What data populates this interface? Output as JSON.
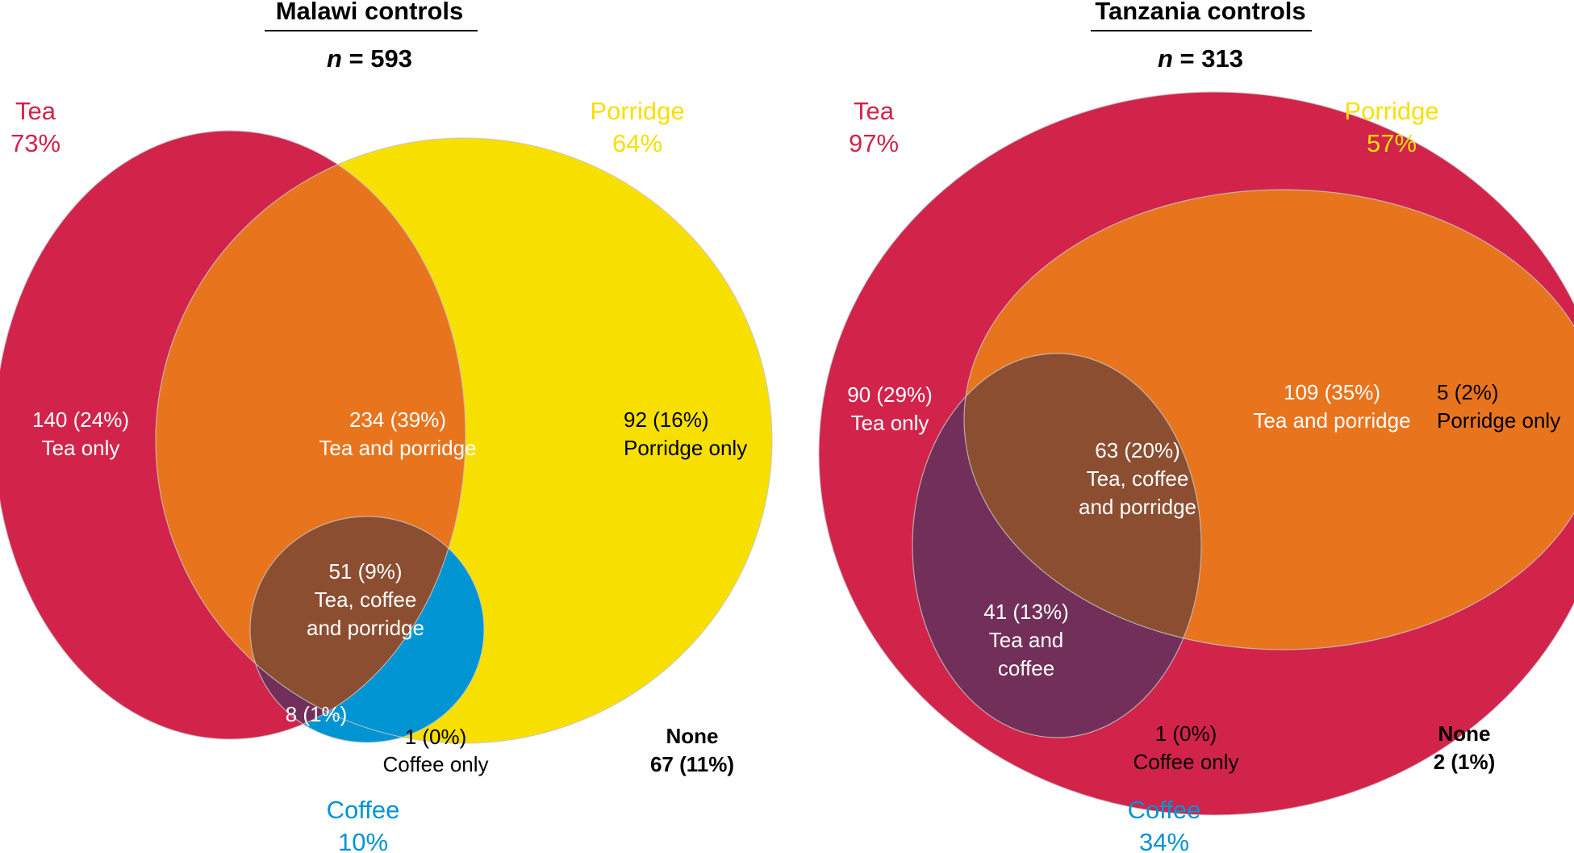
{
  "colors": {
    "tea": "#d2234b",
    "porridge": "#f7df00",
    "coffee": "#0094d2",
    "tea_porridge": "#e8741e",
    "tea_coffee": "#722f59",
    "tea_coffee_porridge": "#8c4e31",
    "label_light": "#ffffff",
    "label_dark": "#000000"
  },
  "panels": [
    {
      "title": "Malawi controls",
      "n_label": "n",
      "n_value": "= 593",
      "sets": {
        "tea": {
          "name": "Tea",
          "percent": "73%"
        },
        "porridge": {
          "name": "Porridge",
          "percent": "64%"
        },
        "coffee": {
          "name": "Coffee",
          "percent": "10%"
        }
      },
      "regions": {
        "tea_only": {
          "count": "140 (24%)",
          "label": "Tea only"
        },
        "tea_porridge": {
          "count": "234 (39%)",
          "label": "Tea and porridge"
        },
        "porridge_only": {
          "count": "92 (16%)",
          "label": "Porridge only"
        },
        "all_three": {
          "count": "51 (9%)",
          "lines": [
            "Tea, coffee",
            "and porridge"
          ]
        },
        "tea_coffee": {
          "count": "8 (1%)"
        },
        "coffee_only": {
          "count": "1 (0%)",
          "label": "Coffee only"
        }
      },
      "none": {
        "label": "None",
        "value": "67 (11%)"
      }
    },
    {
      "title": "Tanzania controls",
      "n_label": "n",
      "n_value": "= 313",
      "sets": {
        "tea": {
          "name": "Tea",
          "percent": "97%"
        },
        "porridge": {
          "name": "Porridge",
          "percent": "57%"
        },
        "coffee": {
          "name": "Coffee",
          "percent": "34%"
        }
      },
      "regions": {
        "tea_only": {
          "count": "90 (29%)",
          "label": "Tea only"
        },
        "tea_porridge": {
          "count": "109 (35%)",
          "label": "Tea and porridge"
        },
        "porridge_only": {
          "count": "5 (2%)",
          "label": "Porridge only"
        },
        "all_three": {
          "count": "63 (20%)",
          "lines": [
            "Tea, coffee",
            "and porridge"
          ]
        },
        "tea_coffee": {
          "count": "41 (13%)",
          "lines": [
            "Tea and",
            "coffee"
          ]
        },
        "coffee_only": {
          "count": "1 (0%)",
          "label": "Coffee only"
        }
      },
      "none": {
        "label": "None",
        "value": "2 (1%)"
      }
    }
  ]
}
